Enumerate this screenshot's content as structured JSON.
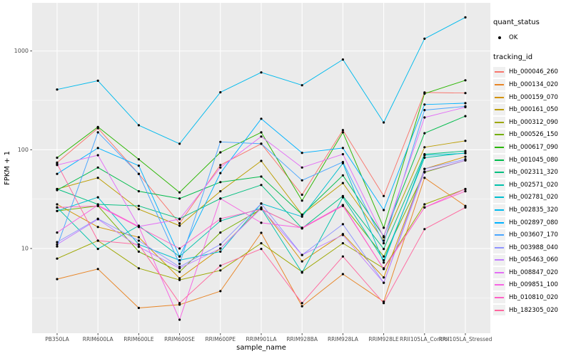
{
  "chart_data": {
    "type": "line",
    "title": "",
    "xlabel": "sample_name",
    "ylabel": "FPKM + 1",
    "y_scale": "log10",
    "ylim": [
      1.4,
      3100
    ],
    "grid": "on",
    "legend_position": "right",
    "y_ticks": {
      "values": [
        10,
        100,
        1000
      ],
      "labels": [
        "10",
        "100",
        "1000"
      ]
    },
    "y_minor": [
      3.162,
      31.62,
      316.2
    ],
    "categories": [
      "PB350LA",
      "RRIM600LA",
      "RRIM600LE",
      "RRIM600SE",
      "RRIM600PE",
      "RRIM901LA",
      "RRIM928BA",
      "RRIM928LA",
      "RRIM928LE",
      "RRII105LA_Control",
      "RRII105LA_Stressed"
    ],
    "series": [
      {
        "id": "Hb_000046_260",
        "color": "#F8766D",
        "quant_status": "OK",
        "values": [
          74,
          165,
          57,
          18,
          70,
          115,
          35,
          158,
          34,
          380,
          375
        ]
      },
      {
        "id": "Hb_000134_020",
        "color": "#E88526",
        "quant_status": "OK",
        "values": [
          4.9,
          6.2,
          2.5,
          2.7,
          3.7,
          14.4,
          2.6,
          5.5,
          2.9,
          52,
          27
        ]
      },
      {
        "id": "Hb_000159_070",
        "color": "#D39200",
        "quant_status": "OK",
        "values": [
          28,
          16.5,
          13,
          5,
          10,
          26,
          7.4,
          14,
          5.1,
          64,
          85
        ]
      },
      {
        "id": "Hb_000161_050",
        "color": "#BB9D00",
        "quant_status": "OK",
        "values": [
          40,
          52,
          25,
          17,
          38,
          77,
          22,
          46,
          12,
          106,
          123
        ]
      },
      {
        "id": "Hb_000312_090",
        "color": "#9DA700",
        "quant_status": "OK",
        "values": [
          7.9,
          12,
          6.3,
          4.8,
          6,
          11.3,
          5.8,
          11.3,
          6.3,
          28,
          40
        ]
      },
      {
        "id": "Hb_000526_150",
        "color": "#75AF00",
        "quant_status": "OK",
        "values": [
          24,
          27,
          9.3,
          5.8,
          14.5,
          25,
          16,
          27.5,
          8.3,
          59,
          78
        ]
      },
      {
        "id": "Hb_000617_090",
        "color": "#2AB600",
        "quant_status": "OK",
        "values": [
          83,
          170,
          80,
          37,
          94,
          150,
          30.5,
          150,
          16.2,
          370,
          505
        ]
      },
      {
        "id": "Hb_001045_080",
        "color": "#00BB4B",
        "quant_status": "OK",
        "values": [
          39,
          66,
          38,
          32,
          47,
          53.5,
          22,
          55,
          13.3,
          147,
          219
        ]
      },
      {
        "id": "Hb_002311_320",
        "color": "#00BF7F",
        "quant_status": "OK",
        "values": [
          40,
          28,
          27,
          20,
          32,
          44,
          16,
          34,
          9.9,
          90,
          97
        ]
      },
      {
        "id": "Hb_002571_020",
        "color": "#00C1AB",
        "quant_status": "OK",
        "values": [
          26,
          9.9,
          17,
          8.3,
          19,
          25.5,
          5.7,
          33,
          7.6,
          83,
          93
        ]
      },
      {
        "id": "Hb_002781_020",
        "color": "#00BFD0",
        "quant_status": "OK",
        "values": [
          24,
          33,
          11,
          7.6,
          9.3,
          28.5,
          21,
          73,
          7.2,
          88,
          92
        ]
      },
      {
        "id": "Hb_002835_320",
        "color": "#00BAED",
        "quant_status": "OK",
        "values": [
          407,
          500,
          177,
          115,
          382,
          607,
          450,
          819,
          189,
          1330,
          2190
        ]
      },
      {
        "id": "Hb_002897_080",
        "color": "#00B2FF",
        "quant_status": "OK",
        "values": [
          57,
          104,
          69,
          8.3,
          58,
          206,
          93,
          104,
          24.5,
          287,
          296
        ]
      },
      {
        "id": "Hb_003607_170",
        "color": "#49A6FF",
        "quant_status": "OK",
        "values": [
          10.5,
          150,
          57,
          7,
          120,
          115,
          49,
          75,
          11.3,
          252,
          275
        ]
      },
      {
        "id": "Hb_003988_040",
        "color": "#9094FF",
        "quant_status": "OK",
        "values": [
          11.6,
          20,
          12,
          6.5,
          11,
          28.5,
          8.6,
          17.6,
          4.5,
          64,
          80
        ]
      },
      {
        "id": "Hb_005463_060",
        "color": "#C27FFF",
        "quant_status": "OK",
        "values": [
          11,
          19.8,
          10.4,
          6.3,
          10,
          25.5,
          8.6,
          13.7,
          4.5,
          60,
          78
        ]
      },
      {
        "id": "Hb_008847_020",
        "color": "#E36EF6",
        "quant_status": "OK",
        "values": [
          70,
          88,
          16.7,
          19.8,
          66,
          136,
          66,
          90,
          13,
          212,
          270
        ]
      },
      {
        "id": "Hb_009851_100",
        "color": "#F763E3",
        "quant_status": "OK",
        "values": [
          14.5,
          27.5,
          16.7,
          1.9,
          32,
          18.2,
          16.2,
          27.5,
          6.2,
          26,
          40
        ]
      },
      {
        "id": "Hb_010810_020",
        "color": "#FF62C6",
        "quant_status": "OK",
        "values": [
          26,
          27,
          16.5,
          10,
          20,
          25,
          16,
          27,
          6.2,
          26,
          38
        ]
      },
      {
        "id": "Hb_182305_020",
        "color": "#FF689F",
        "quant_status": "OK",
        "values": [
          72,
          12,
          11,
          2.8,
          6.7,
          9.9,
          2.8,
          8.3,
          2.8,
          15.7,
          26
        ]
      }
    ]
  },
  "legend": {
    "quant_status": {
      "title": "quant_status",
      "items": [
        {
          "label": "OK",
          "symbol": "point"
        }
      ]
    },
    "tracking_id": {
      "title": "tracking_id"
    }
  },
  "theme": {
    "panel_bg": "#EBEBEB",
    "grid_color": "#FFFFFF",
    "point_color": "#000000",
    "tick_color": "#333333",
    "tick_label_color": "#4D4D4D",
    "legend_key_bg": "#F0F0F0"
  }
}
